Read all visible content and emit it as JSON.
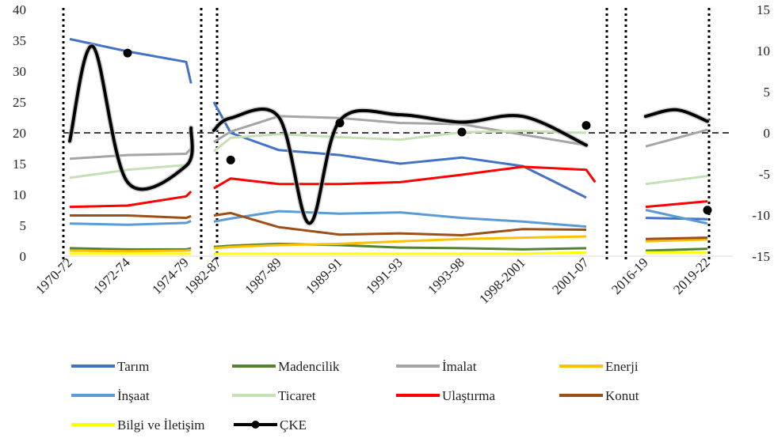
{
  "chart_data": {
    "type": "line",
    "categories": [
      "1970-72",
      "1972-74",
      "1974-79",
      "1982-87",
      "1987-89",
      "1989-91",
      "1991-93",
      "1993-98",
      "1998-2001",
      "2001-07",
      "2016-19",
      "2019-22"
    ],
    "y_left": {
      "ylim": [
        0,
        40
      ],
      "ticks": [
        "0",
        "5",
        "10",
        "15",
        "20",
        "25",
        "30",
        "35",
        "40"
      ]
    },
    "y_right": {
      "ylim": [
        -15,
        15
      ],
      "ticks": [
        "-15",
        "-10",
        "-5",
        "0",
        "5",
        "10",
        "15"
      ]
    },
    "series": [
      {
        "name": "Tarım",
        "color": "#4472C4",
        "axis": "left",
        "segments": [
          [
            [
              0,
              35.2
            ],
            [
              1,
              33.2
            ],
            [
              2,
              31.5
            ],
            [
              2.15,
              28.0
            ]
          ],
          [
            [
              2.85,
              25.0
            ],
            [
              3.2,
              20.0
            ],
            [
              4,
              17.2
            ],
            [
              5,
              16.4
            ],
            [
              6,
              15.0
            ],
            [
              7,
              16.0
            ],
            [
              8,
              14.6
            ],
            [
              9,
              9.5
            ]
          ],
          [
            [
              10,
              6.2
            ],
            [
              11,
              6.0
            ]
          ]
        ]
      },
      {
        "name": "Madencilik",
        "color": "#548235",
        "axis": "left",
        "segments": [
          [
            [
              0,
              1.3
            ],
            [
              1,
              1.1
            ],
            [
              2,
              1.1
            ],
            [
              2.15,
              1.3
            ]
          ],
          [
            [
              2.85,
              1.5
            ],
            [
              3.2,
              1.7
            ],
            [
              4,
              2.0
            ],
            [
              5,
              1.8
            ],
            [
              6,
              1.4
            ],
            [
              7,
              1.3
            ],
            [
              8,
              1.1
            ],
            [
              9,
              1.3
            ]
          ],
          [
            [
              10,
              0.9
            ],
            [
              11,
              1.2
            ]
          ]
        ]
      },
      {
        "name": "İmalat",
        "color": "#A5A5A5",
        "axis": "left",
        "segments": [
          [
            [
              0,
              15.8
            ],
            [
              1,
              16.4
            ],
            [
              2,
              16.6
            ],
            [
              2.15,
              17.5
            ]
          ],
          [
            [
              2.85,
              18.5
            ],
            [
              3.2,
              20.2
            ],
            [
              4,
              22.7
            ],
            [
              5,
              22.4
            ],
            [
              6,
              21.6
            ],
            [
              7,
              21.4
            ],
            [
              8,
              19.7
            ],
            [
              9,
              18.0
            ]
          ],
          [
            [
              10,
              17.8
            ],
            [
              11,
              20.5
            ]
          ]
        ]
      },
      {
        "name": "Enerji",
        "color": "#FFC000",
        "axis": "left",
        "segments": [
          [
            [
              0,
              0.9
            ],
            [
              1,
              0.8
            ],
            [
              2,
              0.9
            ],
            [
              2.15,
              1.0
            ]
          ],
          [
            [
              2.85,
              1.3
            ],
            [
              3.2,
              1.5
            ],
            [
              4,
              1.8
            ],
            [
              5,
              2.0
            ],
            [
              6,
              2.4
            ],
            [
              7,
              2.8
            ],
            [
              8,
              3.0
            ],
            [
              9,
              3.2
            ]
          ],
          [
            [
              10,
              2.4
            ],
            [
              11,
              2.7
            ]
          ]
        ]
      },
      {
        "name": "İnşaat",
        "color": "#5B9BD5",
        "axis": "left",
        "segments": [
          [
            [
              0,
              5.3
            ],
            [
              1,
              5.1
            ],
            [
              2,
              5.4
            ],
            [
              2.15,
              5.7
            ]
          ],
          [
            [
              2.85,
              5.6
            ],
            [
              3.2,
              6.1
            ],
            [
              4,
              7.3
            ],
            [
              5,
              6.9
            ],
            [
              6,
              7.1
            ],
            [
              7,
              6.2
            ],
            [
              8,
              5.6
            ],
            [
              9,
              4.8
            ]
          ],
          [
            [
              10,
              7.5
            ],
            [
              11,
              5.3
            ]
          ]
        ]
      },
      {
        "name": "Ticaret",
        "color": "#C5E0B4",
        "axis": "left",
        "segments": [
          [
            [
              0,
              12.7
            ],
            [
              1,
              14.0
            ],
            [
              2,
              14.8
            ],
            [
              2.15,
              16.0
            ]
          ],
          [
            [
              2.85,
              17.0
            ],
            [
              3.2,
              19.2
            ],
            [
              4,
              19.8
            ],
            [
              5,
              19.3
            ],
            [
              6,
              18.9
            ],
            [
              7,
              20.1
            ],
            [
              8,
              20.3
            ],
            [
              9,
              20.0
            ]
          ],
          [
            [
              10,
              11.7
            ],
            [
              11,
              13.0
            ]
          ]
        ]
      },
      {
        "name": "Ulaştırma",
        "color": "#FF0000",
        "axis": "left",
        "segments": [
          [
            [
              0,
              8.0
            ],
            [
              1,
              8.2
            ],
            [
              2,
              9.7
            ],
            [
              2.15,
              10.5
            ]
          ],
          [
            [
              2.85,
              11.0
            ],
            [
              3.2,
              12.6
            ],
            [
              4,
              11.7
            ],
            [
              5,
              11.7
            ],
            [
              6,
              12.0
            ],
            [
              7,
              13.2
            ],
            [
              8,
              14.5
            ],
            [
              9,
              14.0
            ],
            [
              9.15,
              12.0
            ]
          ],
          [
            [
              10,
              8.0
            ],
            [
              11,
              8.9
            ]
          ]
        ]
      },
      {
        "name": "Konut",
        "color": "#9C4F16",
        "axis": "left",
        "segments": [
          [
            [
              0,
              6.6
            ],
            [
              1,
              6.6
            ],
            [
              2,
              6.2
            ],
            [
              2.15,
              6.5
            ]
          ],
          [
            [
              2.85,
              6.6
            ],
            [
              3.2,
              7.0
            ],
            [
              4,
              4.7
            ],
            [
              5,
              3.5
            ],
            [
              6,
              3.7
            ],
            [
              7,
              3.4
            ],
            [
              8,
              4.4
            ],
            [
              9,
              4.3
            ]
          ],
          [
            [
              10,
              2.8
            ],
            [
              11,
              3.0
            ]
          ]
        ]
      },
      {
        "name": "Bilgi ve İletişim",
        "color": "#FFFF00",
        "axis": "left",
        "segments": [
          [
            [
              0,
              0.4
            ],
            [
              1,
              0.4
            ],
            [
              2,
              0.4
            ],
            [
              2.15,
              0.4
            ]
          ],
          [
            [
              2.85,
              0.4
            ],
            [
              3.2,
              0.4
            ],
            [
              4,
              0.4
            ],
            [
              5,
              0.4
            ],
            [
              6,
              0.4
            ],
            [
              7,
              0.4
            ],
            [
              8,
              0.4
            ],
            [
              9,
              0.6
            ]
          ],
          [
            [
              10,
              0.6
            ],
            [
              11,
              0.6
            ]
          ]
        ]
      },
      {
        "name": "ÇKE",
        "color": "#000000",
        "axis": "right",
        "segments": [
          [
            [
              0,
              -1.0
            ],
            [
              0.4,
              10.5
            ],
            [
              1,
              -6.0
            ],
            [
              2,
              -4.0
            ],
            [
              2.15,
              0.6
            ]
          ],
          [
            [
              2.85,
              0.3
            ],
            [
              3.2,
              1.8
            ],
            [
              4,
              1.9
            ],
            [
              4.5,
              -11.0
            ],
            [
              5,
              1.5
            ],
            [
              6,
              2.2
            ],
            [
              7,
              1.3
            ],
            [
              8,
              2.0
            ],
            [
              9,
              -1.5
            ]
          ],
          [
            [
              10,
              2.0
            ],
            [
              10.5,
              2.8
            ],
            [
              11,
              1.4
            ]
          ]
        ],
        "points": [
          [
            1,
            9.7
          ],
          [
            3.2,
            -3.3
          ],
          [
            5,
            1.2
          ],
          [
            7,
            0.1
          ],
          [
            9,
            0.9
          ],
          [
            11,
            -9.4
          ]
        ]
      }
    ],
    "legend_position": "bottom",
    "dividers": [
      "after 1974-79",
      "before 2016-19"
    ]
  }
}
